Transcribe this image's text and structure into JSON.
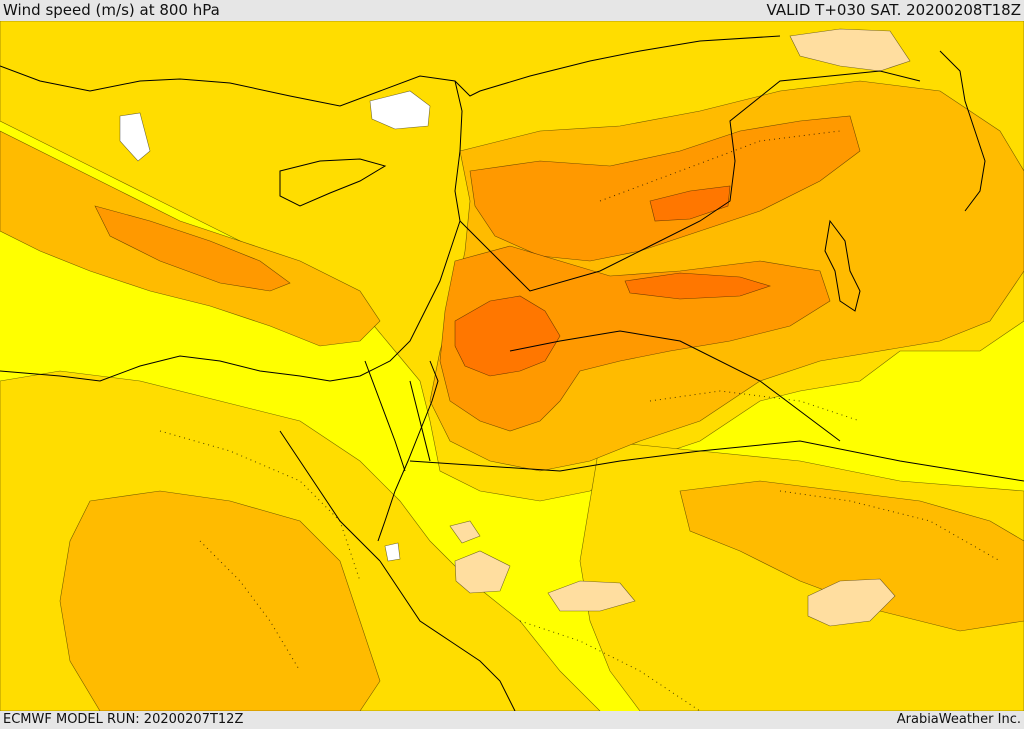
{
  "header": {
    "title": "Wind speed (m/s) at 800 hPa",
    "valid_time": "VALID T+030 SAT. 20200208T18Z"
  },
  "footer": {
    "model_run": "ECMWF MODEL RUN: 20200207T12Z",
    "credit": "ArabiaWeather Inc."
  },
  "colors": {
    "light_yellow": "#ffff00",
    "yellow": "#ffdd00",
    "light_orange": "#ffbb00",
    "orange": "#ff9900",
    "dark_orange": "#ff7700",
    "pale_peach": "#ffdea0",
    "white": "#ffffff",
    "coastline": "#000000"
  }
}
